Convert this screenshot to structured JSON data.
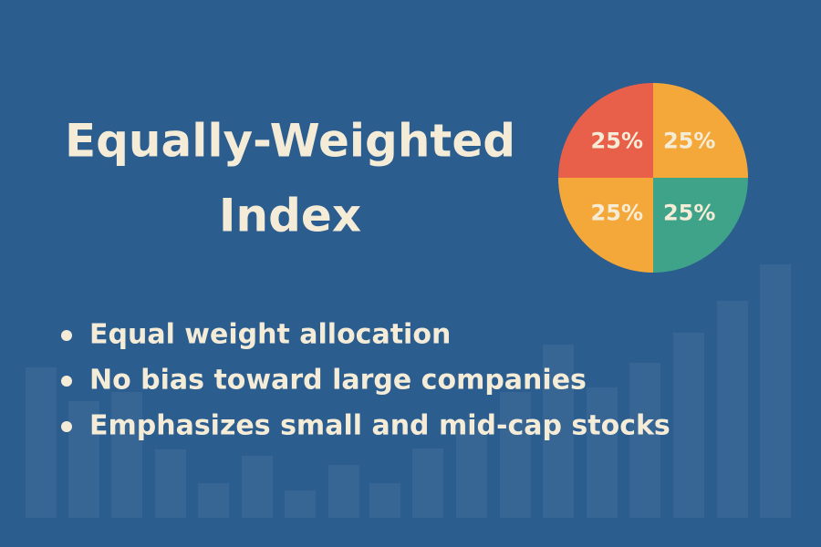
{
  "title": [
    "Equally-Weighted",
    "Index"
  ],
  "bullets": [
    "Equal weight allocation",
    "No bias toward large companies",
    "Emphasizes small and mid-cap stocks"
  ],
  "pie": {
    "type": "pie",
    "values": [
      25,
      25,
      25,
      25
    ],
    "value_labels": [
      "25%",
      "25%",
      "25%",
      "25%"
    ],
    "colors": [
      "#f5a83a",
      "#3fa389",
      "#f5a83a",
      "#e8604a"
    ]
  }
}
